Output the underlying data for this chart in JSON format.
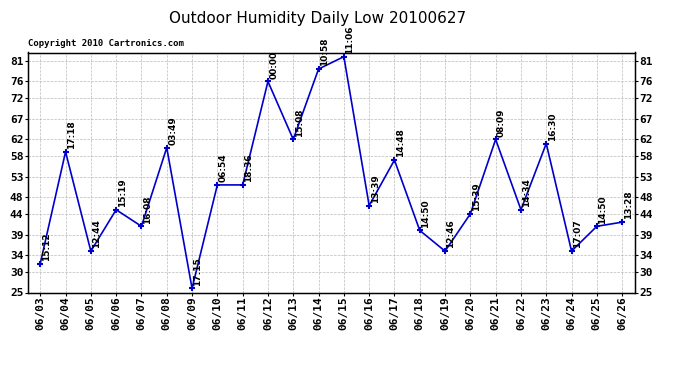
{
  "title": "Outdoor Humidity Daily Low 20100627",
  "copyright": "Copyright 2010 Cartronics.com",
  "x_labels": [
    "06/03",
    "06/04",
    "06/05",
    "06/06",
    "06/07",
    "06/08",
    "06/09",
    "06/10",
    "06/11",
    "06/12",
    "06/13",
    "06/14",
    "06/15",
    "06/16",
    "06/17",
    "06/18",
    "06/19",
    "06/20",
    "06/21",
    "06/22",
    "06/23",
    "06/24",
    "06/25",
    "06/26"
  ],
  "y_values": [
    32,
    59,
    35,
    45,
    41,
    60,
    26,
    51,
    51,
    76,
    62,
    79,
    82,
    46,
    57,
    40,
    35,
    44,
    62,
    45,
    61,
    35,
    41,
    42
  ],
  "time_labels": [
    "15:12",
    "17:18",
    "12:44",
    "15:19",
    "16:08",
    "03:49",
    "17:15",
    "06:54",
    "18:36",
    "00:00",
    "15:08",
    "10:58",
    "11:06",
    "13:39",
    "14:48",
    "14:50",
    "12:46",
    "15:39",
    "08:09",
    "14:34",
    "16:30",
    "17:07",
    "14:50",
    "13:28"
  ],
  "ylim": [
    25,
    83
  ],
  "yticks": [
    25,
    30,
    34,
    39,
    44,
    48,
    53,
    58,
    62,
    67,
    72,
    76,
    81
  ],
  "line_color": "#0000cc",
  "marker_color": "#0000cc",
  "bg_color": "#ffffff",
  "grid_color": "#aaaaaa",
  "title_fontsize": 11,
  "tick_fontsize": 8,
  "label_fontsize": 6.5,
  "copyright_fontsize": 6.5
}
